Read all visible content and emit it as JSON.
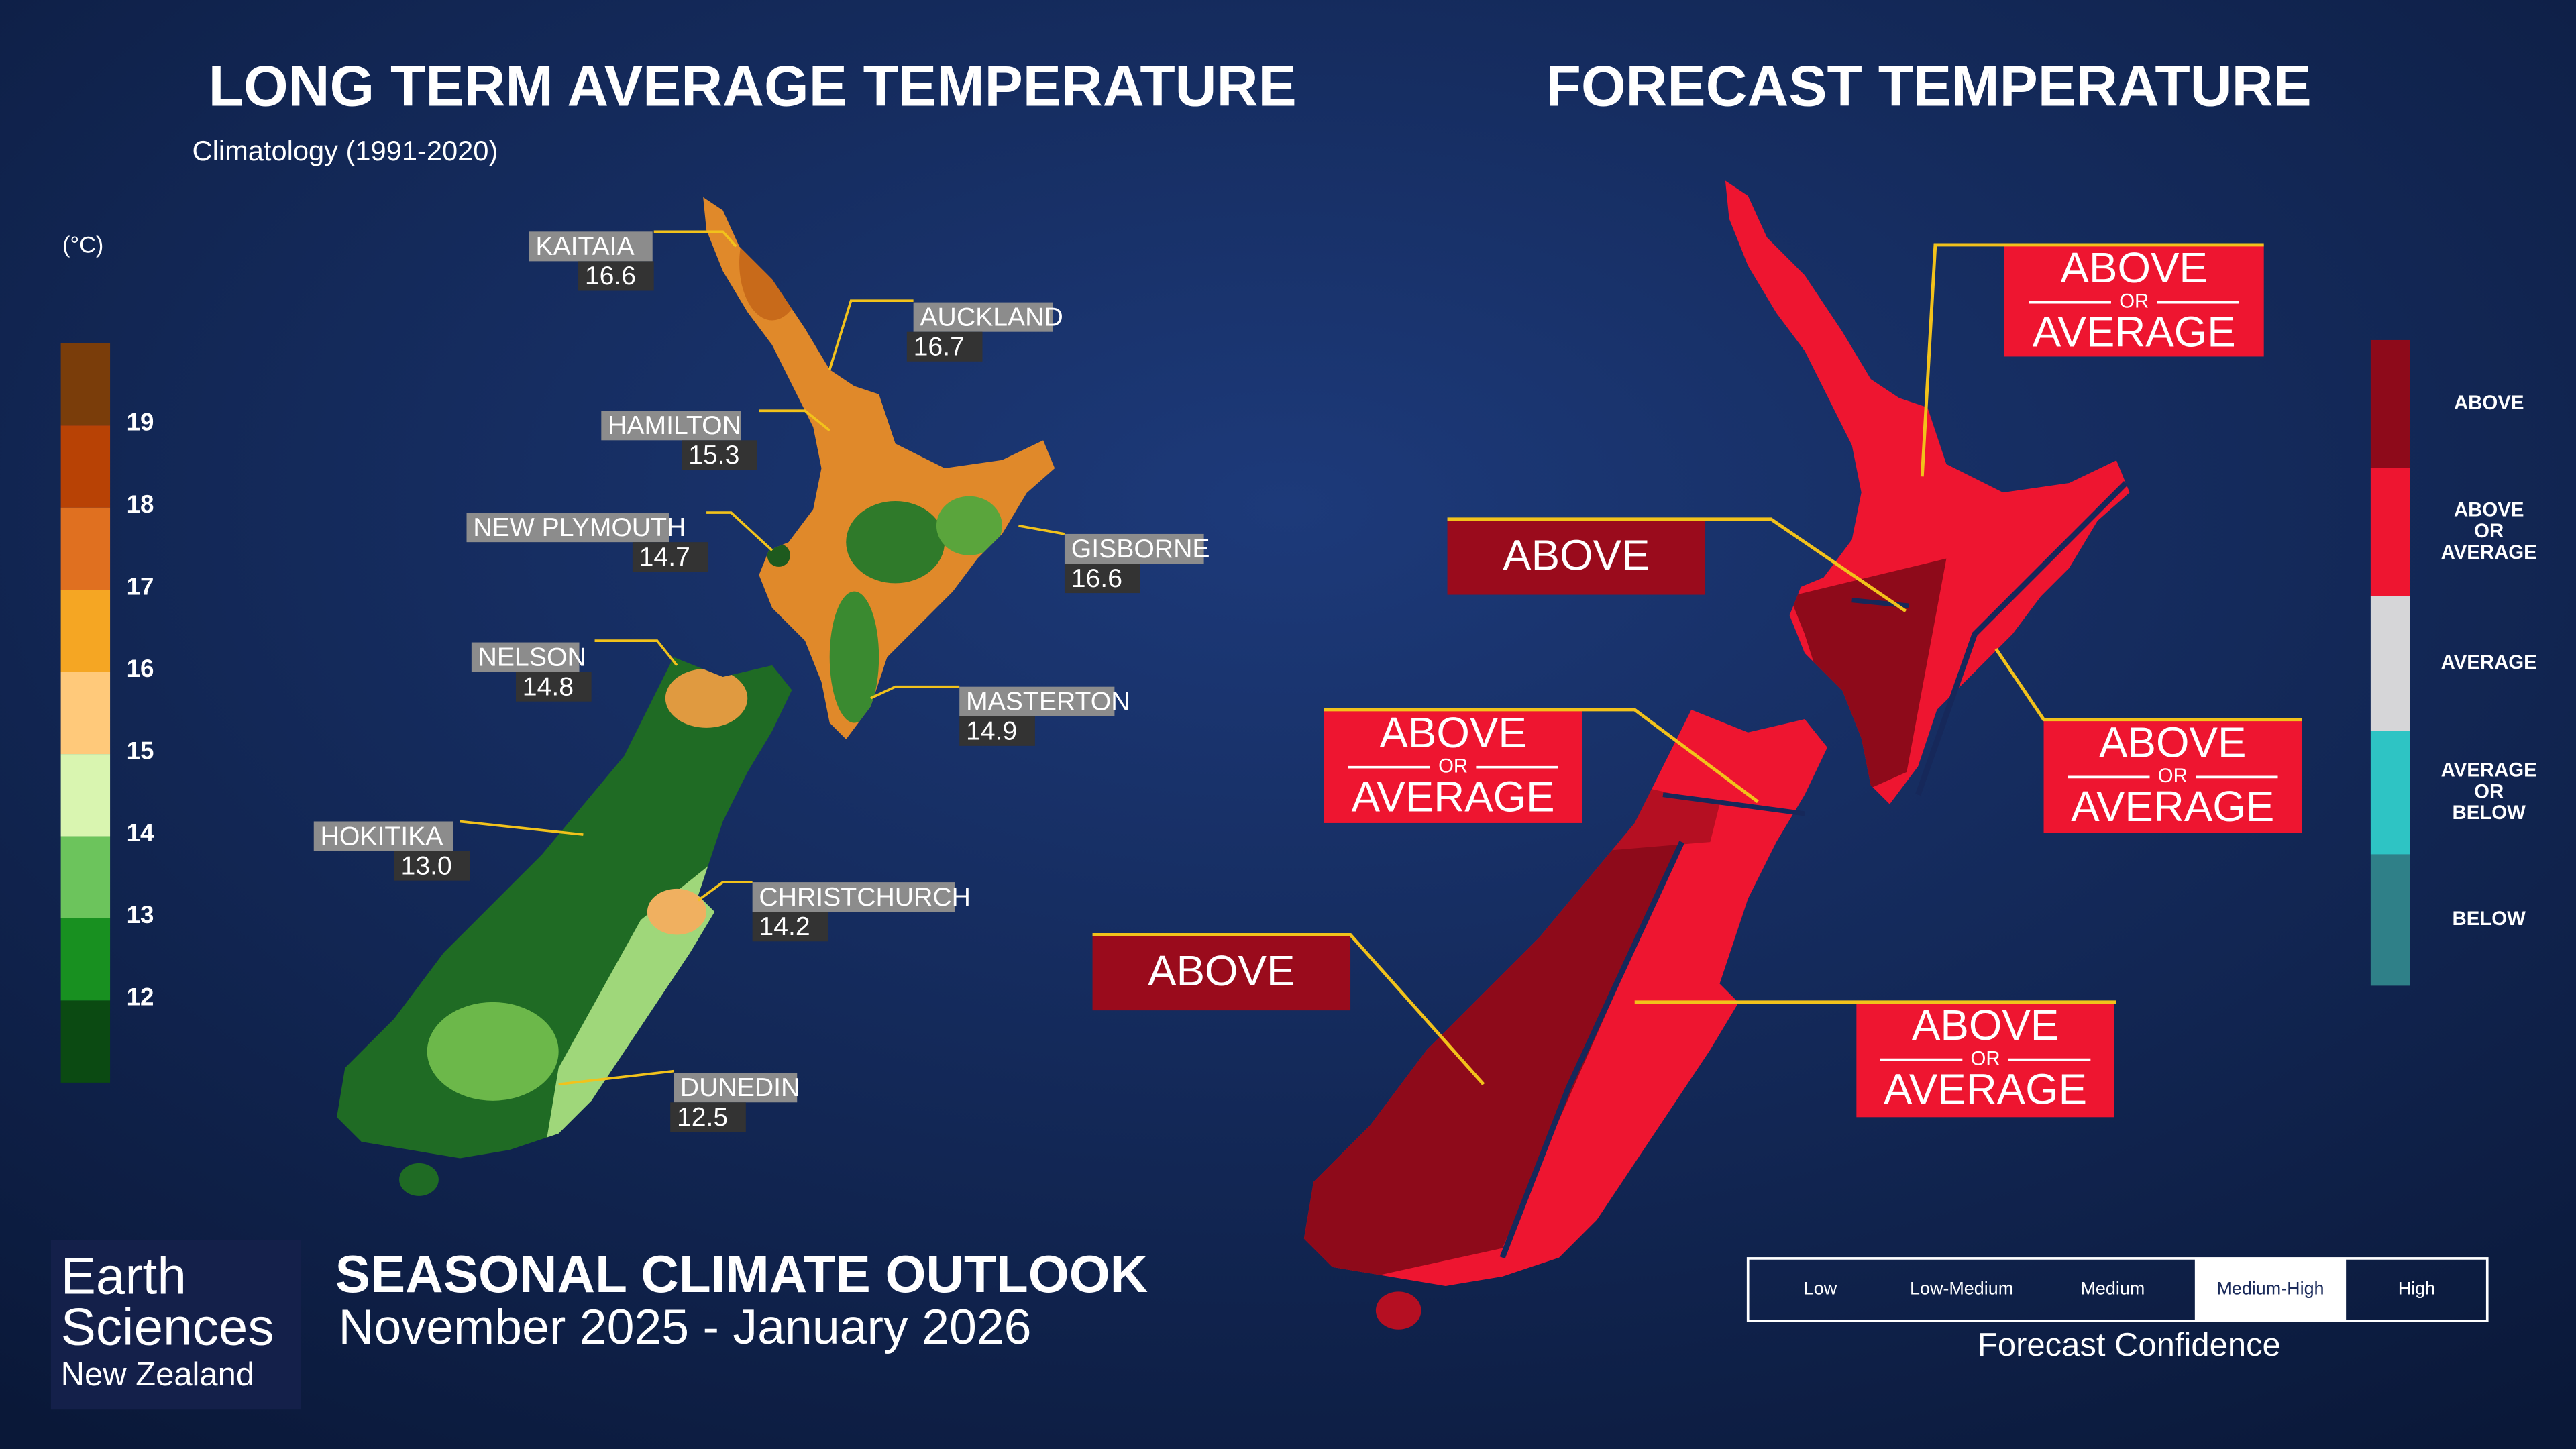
{
  "left_panel": {
    "title": "LONG TERM AVERAGE TEMPERATURE",
    "subtitle": "Climatology (1991-2020)",
    "legend": {
      "unit": "(°C)",
      "ticks": [
        19,
        18,
        17,
        16,
        15,
        14,
        13,
        12
      ]
    },
    "stations": [
      {
        "name": "KAITAIA",
        "value": "16.6"
      },
      {
        "name": "AUCKLAND",
        "value": "16.7"
      },
      {
        "name": "HAMILTON",
        "value": "15.3"
      },
      {
        "name": "NEW PLYMOUTH",
        "value": "14.7"
      },
      {
        "name": "GISBORNE",
        "value": "16.6"
      },
      {
        "name": "NELSON",
        "value": "14.8"
      },
      {
        "name": "MASTERTON",
        "value": "14.9"
      },
      {
        "name": "HOKITIKA",
        "value": "13.0"
      },
      {
        "name": "CHRISTCHURCH",
        "value": "14.2"
      },
      {
        "name": "DUNEDIN",
        "value": "12.5"
      }
    ]
  },
  "right_panel": {
    "title": "FORECAST TEMPERATURE",
    "regions": [
      {
        "lines": [
          "ABOVE",
          "OR",
          "AVERAGE"
        ],
        "color": "#ee1530"
      },
      {
        "lines": [
          "ABOVE"
        ],
        "color": "#9a0b1c"
      },
      {
        "lines": [
          "ABOVE",
          "OR",
          "AVERAGE"
        ],
        "color": "#ee1530"
      },
      {
        "lines": [
          "ABOVE",
          "OR",
          "AVERAGE"
        ],
        "color": "#ee1530"
      },
      {
        "lines": [
          "ABOVE"
        ],
        "color": "#9a0b1c"
      },
      {
        "lines": [
          "ABOVE",
          "OR",
          "AVERAGE"
        ],
        "color": "#ee1530"
      }
    ],
    "legend": [
      {
        "lines": [
          "ABOVE"
        ],
        "color": "#8e0a1a"
      },
      {
        "lines": [
          "ABOVE",
          "OR",
          "AVERAGE"
        ],
        "color": "#ee1530"
      },
      {
        "lines": [
          "AVERAGE"
        ],
        "color": "#d6d6d8"
      },
      {
        "lines": [
          "AVERAGE",
          "OR",
          "BELOW"
        ],
        "color": "#2ec4c4"
      },
      {
        "lines": [
          "BELOW"
        ],
        "color": "#2f8088"
      }
    ],
    "confidence": {
      "levels": [
        "Low",
        "Low-Medium",
        "Medium",
        "Medium-High",
        "High"
      ],
      "selected": 3,
      "label": "Forecast Confidence"
    }
  },
  "footer": {
    "logo": [
      "Earth",
      "Sciences",
      "New Zealand"
    ],
    "title": "SEASONAL CLIMATE OUTLOOK",
    "period": "November 2025 - January 2026"
  }
}
